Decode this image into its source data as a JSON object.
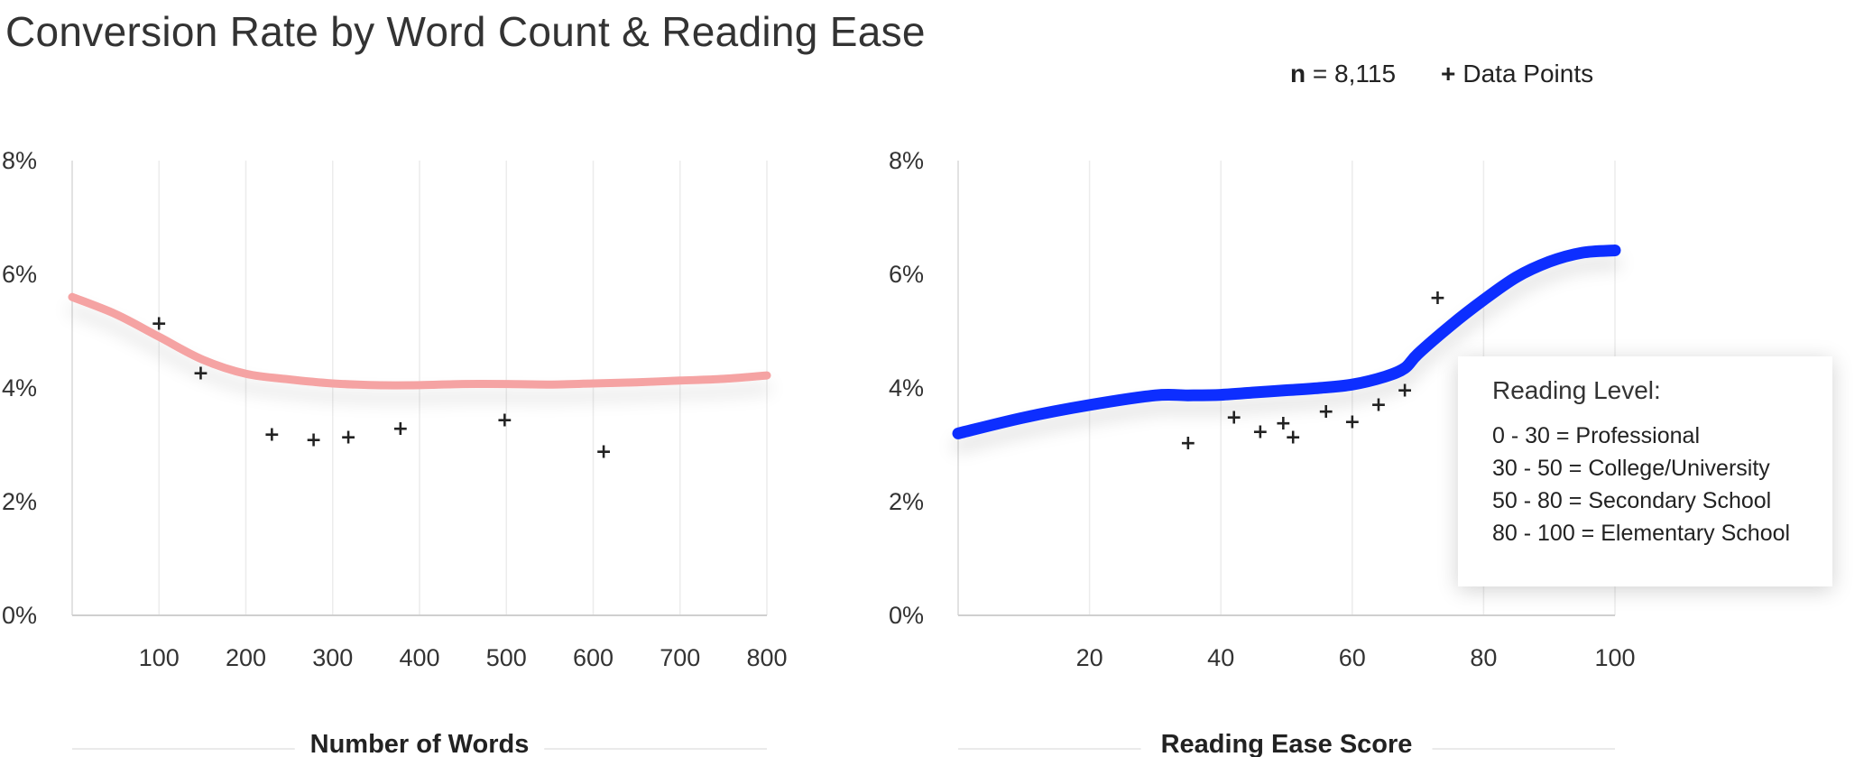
{
  "title": "Conversion Rate by Word Count & Reading Ease",
  "legend": {
    "n_label": "n",
    "n_value": "= 8,115",
    "marker": "+",
    "points_label": "Data Points"
  },
  "info_box": {
    "title": "Reading Level:",
    "lines": [
      "0 - 30 = Professional",
      "30 - 50 = College/University",
      "50 - 80 = Secondary School",
      "80 - 100 = Elementary School"
    ]
  },
  "chart_data": [
    {
      "type": "line",
      "xlabel": "Number of Words",
      "ylabel": "",
      "xlim": [
        0,
        800
      ],
      "ylim": [
        0,
        8
      ],
      "yticks": [
        "0%",
        "2%",
        "4%",
        "6%",
        "8%"
      ],
      "xticks": [
        "100",
        "200",
        "300",
        "400",
        "500",
        "600",
        "700",
        "800"
      ],
      "grid": true,
      "color": "#f5a3a3",
      "trend": {
        "x": [
          0,
          50,
          100,
          150,
          200,
          250,
          300,
          350,
          400,
          450,
          500,
          550,
          600,
          650,
          700,
          750,
          800
        ],
        "y": [
          5.6,
          5.3,
          4.9,
          4.5,
          4.25,
          4.15,
          4.08,
          4.05,
          4.05,
          4.07,
          4.07,
          4.06,
          4.08,
          4.1,
          4.13,
          4.16,
          4.22
        ]
      },
      "points": {
        "x": [
          100,
          148,
          230,
          278,
          318,
          378,
          498,
          612
        ],
        "y": [
          5.15,
          4.28,
          3.2,
          3.1,
          3.15,
          3.3,
          3.45,
          2.9
        ]
      }
    },
    {
      "type": "line",
      "xlabel": "Reading Ease Score",
      "ylabel": "",
      "xlim": [
        0,
        100
      ],
      "ylim": [
        0,
        8
      ],
      "yticks": [
        "0%",
        "2%",
        "4%",
        "6%",
        "8%"
      ],
      "xticks": [
        "20",
        "40",
        "60",
        "80",
        "100"
      ],
      "grid": true,
      "color": "#0a2eff",
      "trend": {
        "x": [
          0,
          10,
          20,
          30,
          35,
          40,
          45,
          50,
          55,
          60,
          65,
          68,
          70,
          75,
          80,
          85,
          90,
          95,
          100
        ],
        "y": [
          3.2,
          3.48,
          3.7,
          3.87,
          3.87,
          3.88,
          3.92,
          3.96,
          4.0,
          4.06,
          4.2,
          4.35,
          4.6,
          5.1,
          5.55,
          5.95,
          6.22,
          6.38,
          6.42
        ]
      },
      "points": {
        "x": [
          35,
          42,
          46,
          49.5,
          51,
          56,
          60,
          64,
          68,
          73
        ],
        "y": [
          3.05,
          3.5,
          3.25,
          3.4,
          3.15,
          3.6,
          3.42,
          3.72,
          3.98,
          5.6
        ]
      }
    }
  ]
}
